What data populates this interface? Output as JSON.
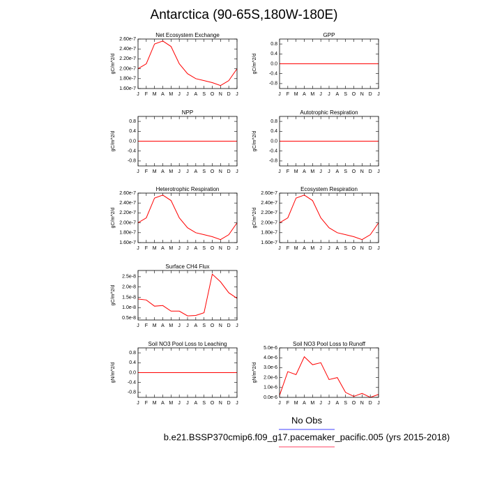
{
  "title": "Antarctica (90-65S,180W-180E)",
  "legend": "No Obs",
  "caption": "b.e21.BSSP370cmip6.f09_g17.pacemaker_pacific.005 (yrs 2015-2018)",
  "chart_data": [
    {
      "type": "line",
      "title": "Net Ecosystem Exchange",
      "ylabel": "gC/m^2/d",
      "color": "#ff0000",
      "categories": [
        "J",
        "F",
        "M",
        "A",
        "M",
        "J",
        "J",
        "A",
        "S",
        "O",
        "N",
        "D",
        "J"
      ],
      "values": [
        2e-07,
        2.1e-07,
        2.5e-07,
        2.56e-07,
        2.45e-07,
        2.1e-07,
        1.9e-07,
        1.8e-07,
        1.76e-07,
        1.72e-07,
        1.66e-07,
        1.76e-07,
        2e-07
      ],
      "ylim": [
        1.6e-07,
        2.6e-07
      ],
      "yticks": [
        {
          "value": 1.6e-07,
          "label": "1.60e-7"
        },
        {
          "value": 1.8e-07,
          "label": "1.80e-7"
        },
        {
          "value": 2e-07,
          "label": "2.00e-7"
        },
        {
          "value": 2.2e-07,
          "label": "2.20e-7"
        },
        {
          "value": 2.4e-07,
          "label": "2.40e-7"
        },
        {
          "value": 2.6e-07,
          "label": "2.60e-7"
        }
      ]
    },
    {
      "type": "line",
      "title": "GPP",
      "ylabel": "gC/m^2/d",
      "color": "#ff0000",
      "categories": [
        "J",
        "F",
        "M",
        "A",
        "M",
        "J",
        "J",
        "A",
        "S",
        "O",
        "N",
        "D",
        "J"
      ],
      "values": [
        0,
        0,
        0,
        0,
        0,
        0,
        0,
        0,
        0,
        0,
        0,
        0,
        0
      ],
      "ylim": [
        -1,
        1
      ],
      "yticks": [
        {
          "value": -0.8,
          "label": "-0.8"
        },
        {
          "value": -0.4,
          "label": "-0.4"
        },
        {
          "value": 0,
          "label": "0.0"
        },
        {
          "value": 0.4,
          "label": "0.4"
        },
        {
          "value": 0.8,
          "label": "0.8"
        }
      ]
    },
    {
      "type": "line",
      "title": "NPP",
      "ylabel": "gC/m^2/d",
      "color": "#ff0000",
      "categories": [
        "J",
        "F",
        "M",
        "A",
        "M",
        "J",
        "J",
        "A",
        "S",
        "O",
        "N",
        "D",
        "J"
      ],
      "values": [
        0,
        0,
        0,
        0,
        0,
        0,
        0,
        0,
        0,
        0,
        0,
        0,
        0
      ],
      "ylim": [
        -1,
        1
      ],
      "yticks": [
        {
          "value": -0.8,
          "label": "-0.8"
        },
        {
          "value": -0.4,
          "label": "-0.4"
        },
        {
          "value": 0,
          "label": "0.0"
        },
        {
          "value": 0.4,
          "label": "0.4"
        },
        {
          "value": 0.8,
          "label": "0.8"
        }
      ]
    },
    {
      "type": "line",
      "title": "Autotrophic Respiration",
      "ylabel": "gC/m^2/d",
      "color": "#ff0000",
      "categories": [
        "J",
        "F",
        "M",
        "A",
        "M",
        "J",
        "J",
        "A",
        "S",
        "O",
        "N",
        "D",
        "J"
      ],
      "values": [
        0,
        0,
        0,
        0,
        0,
        0,
        0,
        0,
        0,
        0,
        0,
        0,
        0
      ],
      "ylim": [
        -1,
        1
      ],
      "yticks": [
        {
          "value": -0.8,
          "label": "-0.8"
        },
        {
          "value": -0.4,
          "label": "-0.4"
        },
        {
          "value": 0,
          "label": "0.0"
        },
        {
          "value": 0.4,
          "label": "0.4"
        },
        {
          "value": 0.8,
          "label": "0.8"
        }
      ]
    },
    {
      "type": "line",
      "title": "Heterotrophic Respiration",
      "ylabel": "gC/m^2/d",
      "color": "#ff0000",
      "categories": [
        "J",
        "F",
        "M",
        "A",
        "M",
        "J",
        "J",
        "A",
        "S",
        "O",
        "N",
        "D",
        "J"
      ],
      "values": [
        2e-07,
        2.1e-07,
        2.5e-07,
        2.56e-07,
        2.45e-07,
        2.1e-07,
        1.9e-07,
        1.8e-07,
        1.76e-07,
        1.72e-07,
        1.66e-07,
        1.76e-07,
        2e-07
      ],
      "ylim": [
        1.6e-07,
        2.6e-07
      ],
      "yticks": [
        {
          "value": 1.6e-07,
          "label": "1.60e-7"
        },
        {
          "value": 1.8e-07,
          "label": "1.80e-7"
        },
        {
          "value": 2e-07,
          "label": "2.00e-7"
        },
        {
          "value": 2.2e-07,
          "label": "2.20e-7"
        },
        {
          "value": 2.4e-07,
          "label": "2.40e-7"
        },
        {
          "value": 2.6e-07,
          "label": "2.60e-7"
        }
      ]
    },
    {
      "type": "line",
      "title": "Ecosystem Respiration",
      "ylabel": "gC/m^2/d",
      "color": "#ff0000",
      "categories": [
        "J",
        "F",
        "M",
        "A",
        "M",
        "J",
        "J",
        "A",
        "S",
        "O",
        "N",
        "D",
        "J"
      ],
      "values": [
        2e-07,
        2.1e-07,
        2.5e-07,
        2.56e-07,
        2.45e-07,
        2.1e-07,
        1.9e-07,
        1.8e-07,
        1.76e-07,
        1.72e-07,
        1.66e-07,
        1.76e-07,
        2e-07
      ],
      "ylim": [
        1.6e-07,
        2.6e-07
      ],
      "yticks": [
        {
          "value": 1.6e-07,
          "label": "1.60e-7"
        },
        {
          "value": 1.8e-07,
          "label": "1.80e-7"
        },
        {
          "value": 2e-07,
          "label": "2.00e-7"
        },
        {
          "value": 2.2e-07,
          "label": "2.20e-7"
        },
        {
          "value": 2.4e-07,
          "label": "2.40e-7"
        },
        {
          "value": 2.6e-07,
          "label": "2.60e-7"
        }
      ]
    },
    {
      "type": "line",
      "title": "Surface CH4 Flux",
      "ylabel": "gC/m^2/d",
      "color": "#ff0000",
      "categories": [
        "J",
        "F",
        "M",
        "A",
        "M",
        "J",
        "J",
        "A",
        "S",
        "O",
        "N",
        "D",
        "J"
      ],
      "values": [
        1.42e-08,
        1.37e-08,
        1.07e-08,
        1.1e-08,
        8.3e-09,
        8.3e-09,
        6e-09,
        6.2e-09,
        7.5e-09,
        2.62e-08,
        2.25e-08,
        1.72e-08,
        1.45e-08
      ],
      "ylim": [
        4e-09,
        2.8e-08
      ],
      "yticks": [
        {
          "value": 5e-09,
          "label": "0.5e-8"
        },
        {
          "value": 1e-08,
          "label": "1.0e-8"
        },
        {
          "value": 1.5e-08,
          "label": "1.5e-8"
        },
        {
          "value": 2e-08,
          "label": "2.0e-8"
        },
        {
          "value": 2.5e-08,
          "label": "2.5e-8"
        }
      ]
    },
    {
      "type": "line",
      "title": "Soil NO3 Pool Loss to Leaching",
      "ylabel": "gN/m^2/d",
      "color": "#ff0000",
      "categories": [
        "J",
        "F",
        "M",
        "A",
        "M",
        "J",
        "J",
        "A",
        "S",
        "O",
        "N",
        "D",
        "J"
      ],
      "values": [
        0,
        0,
        0,
        0,
        0,
        0,
        0,
        0,
        0,
        0,
        0,
        0,
        0
      ],
      "ylim": [
        -1,
        1
      ],
      "yticks": [
        {
          "value": -0.8,
          "label": "-0.8"
        },
        {
          "value": -0.4,
          "label": "-0.4"
        },
        {
          "value": 0,
          "label": "0.0"
        },
        {
          "value": 0.4,
          "label": "0.4"
        },
        {
          "value": 0.8,
          "label": "0.8"
        }
      ]
    },
    {
      "type": "line",
      "title": "Soil NO3 Pool Loss to Runoff",
      "ylabel": "gN/m^2/d",
      "color": "#ff0000",
      "categories": [
        "J",
        "F",
        "M",
        "A",
        "M",
        "J",
        "J",
        "A",
        "S",
        "O",
        "N",
        "D",
        "J"
      ],
      "values": [
        2e-07,
        2.6e-06,
        2.3e-06,
        4.1e-06,
        3.3e-06,
        3.5e-06,
        1.8e-06,
        2e-06,
        5e-07,
        1e-07,
        4e-07,
        0,
        3e-07
      ],
      "ylim": [
        0,
        5e-06
      ],
      "yticks": [
        {
          "value": 0,
          "label": "0.0e-6"
        },
        {
          "value": 1e-06,
          "label": "1.0e-6"
        },
        {
          "value": 2e-06,
          "label": "2.0e-6"
        },
        {
          "value": 3e-06,
          "label": "3.0e-6"
        },
        {
          "value": 4e-06,
          "label": "4.0e-6"
        },
        {
          "value": 5e-06,
          "label": "5.0e-6"
        }
      ]
    }
  ]
}
